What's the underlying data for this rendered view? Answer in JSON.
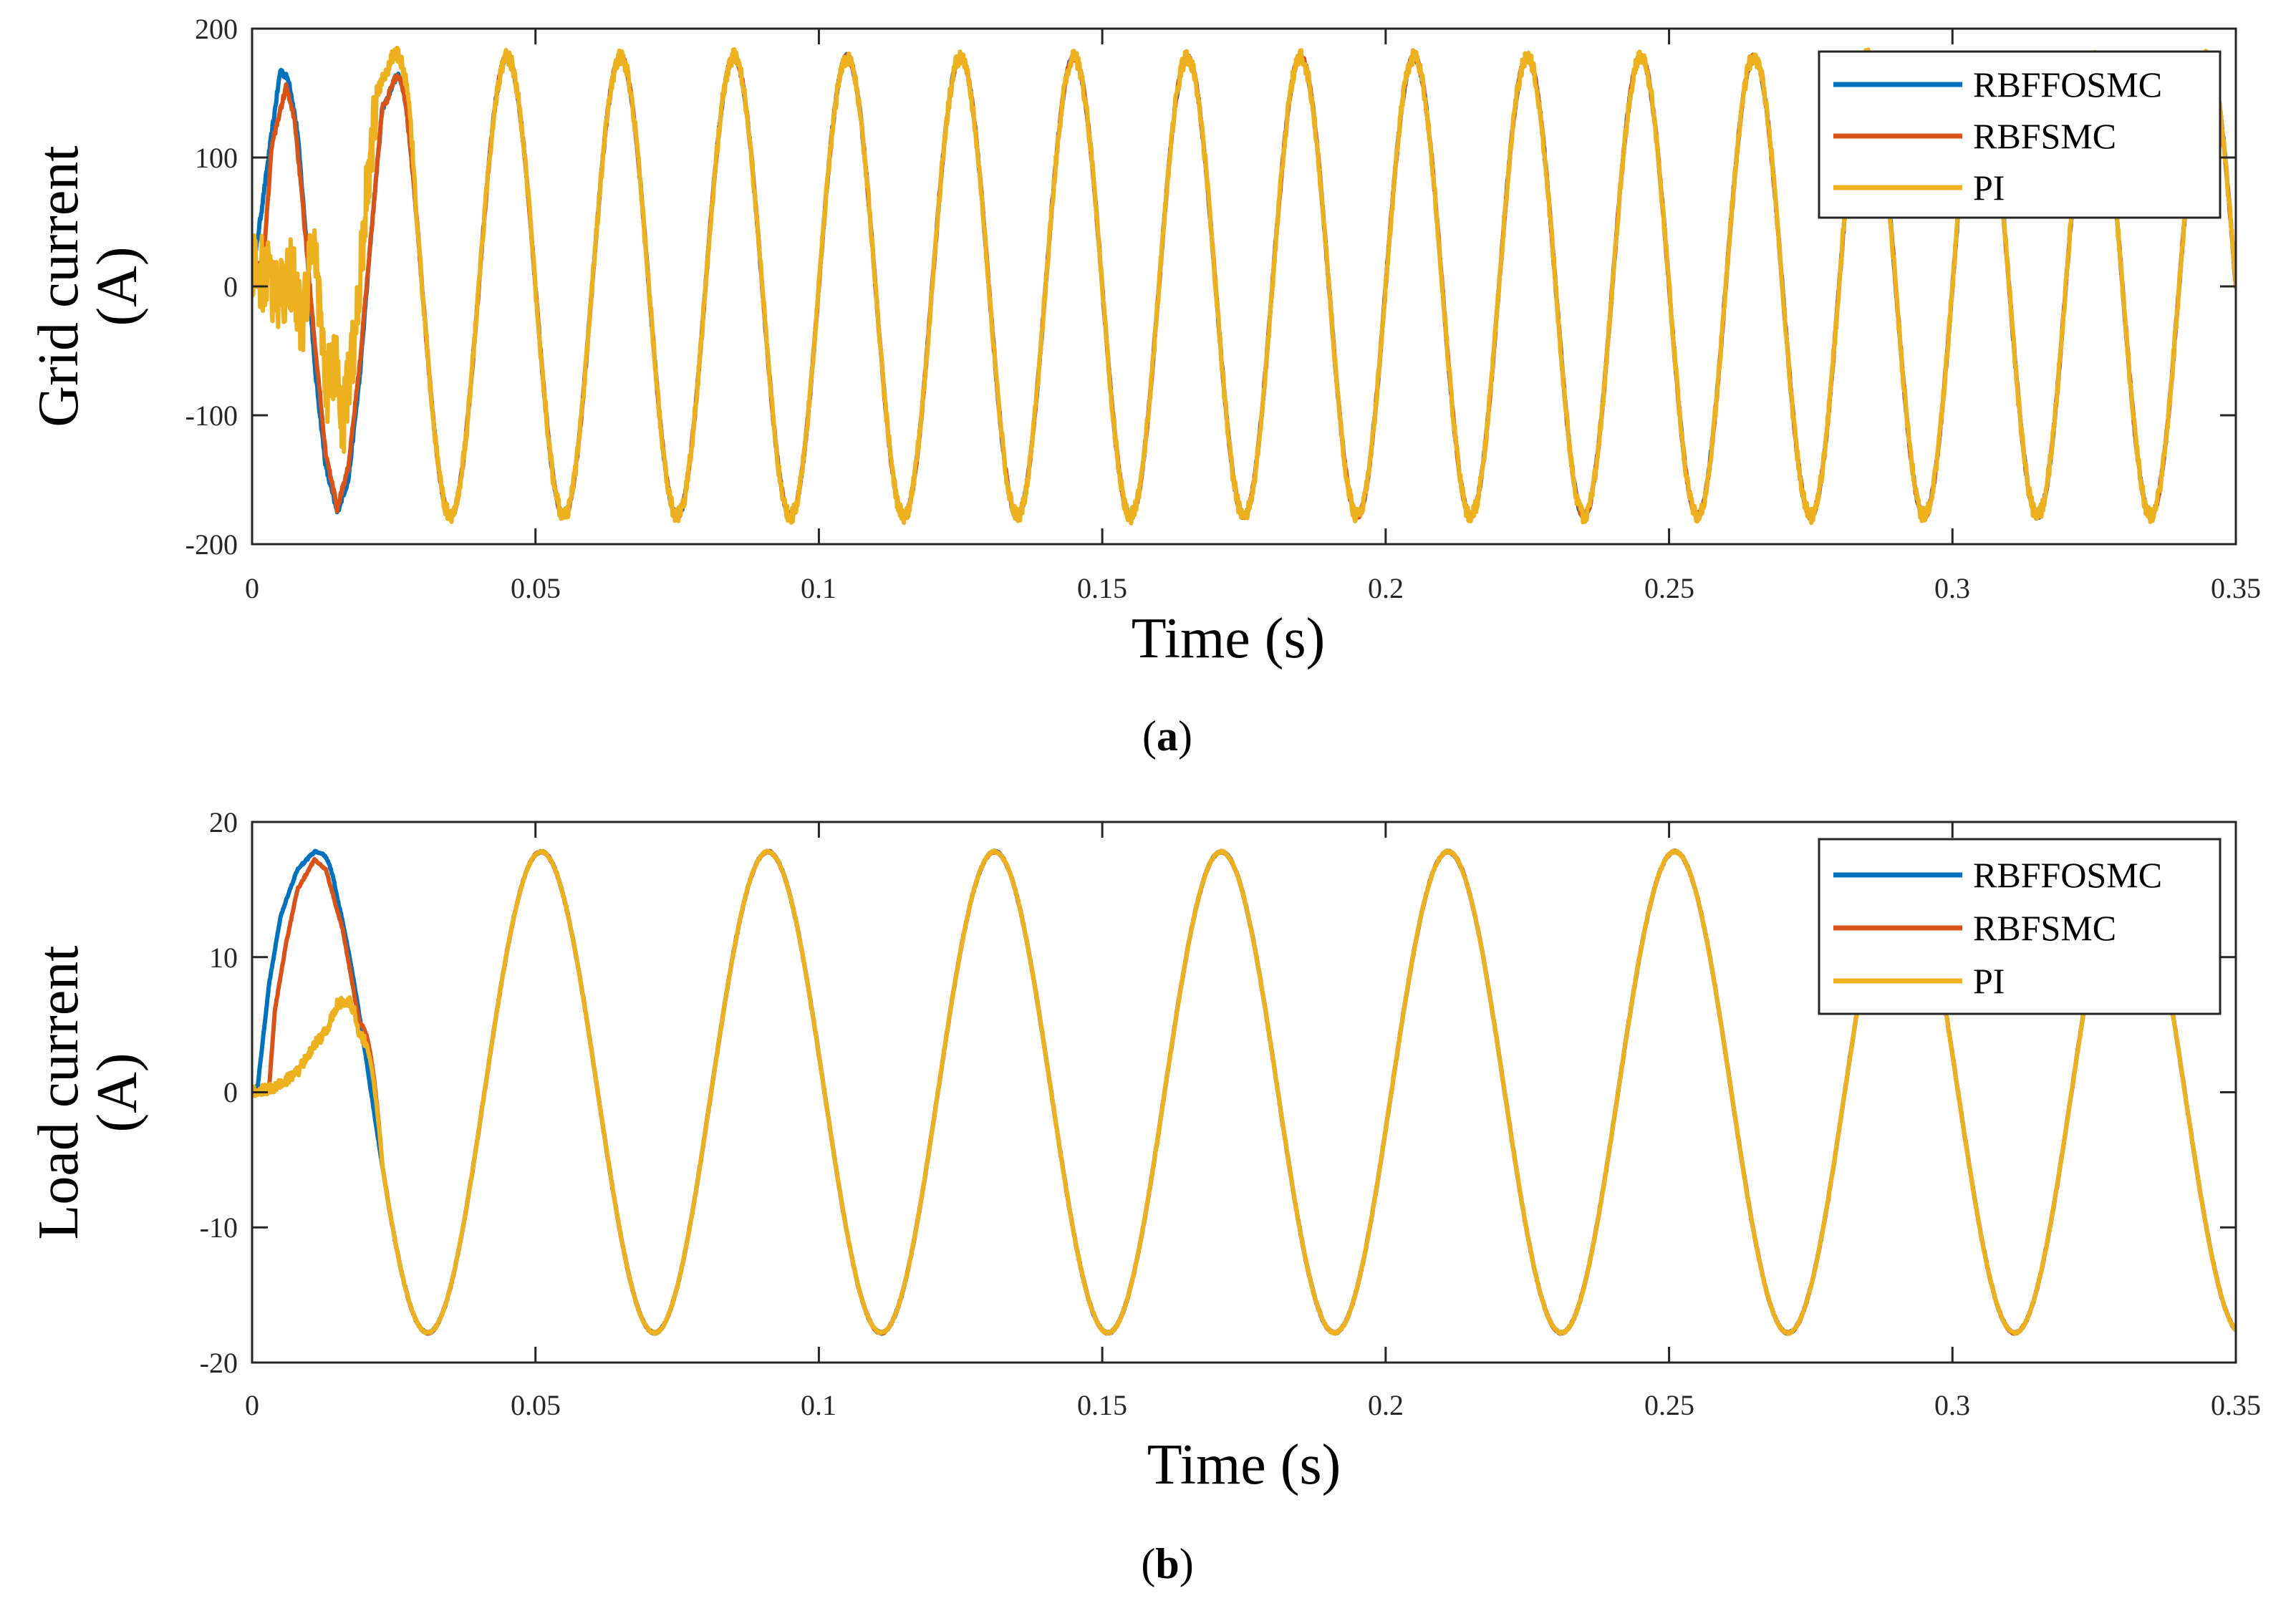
{
  "figure": {
    "captions": [
      "(a)",
      "(b)"
    ],
    "caption_parts": [
      {
        "open": "(",
        "letter": "a",
        "close": ")"
      },
      {
        "open": "(",
        "letter": "b",
        "close": ")"
      }
    ]
  },
  "chart_data": [
    {
      "id": "a",
      "type": "line",
      "title": "",
      "xlabel": "Time (s)",
      "ylabel_lines": [
        "Grid current",
        "(A)"
      ],
      "xlim": [
        0,
        0.35
      ],
      "ylim": [
        -200,
        200
      ],
      "x_ticks": [
        0,
        0.05,
        0.1,
        0.15,
        0.2,
        0.25,
        0.3,
        0.35
      ],
      "x_tick_labels": [
        "0",
        "0.05",
        "0.1",
        "0.15",
        "0.2",
        "0.25",
        "0.3",
        "0.35"
      ],
      "y_ticks": [
        -200,
        -100,
        0,
        100,
        200
      ],
      "y_tick_labels": [
        "-200",
        "-100",
        "0",
        "100",
        "200"
      ],
      "legend_position": "top-right",
      "waveform": {
        "frequency_hz": 50,
        "steady_amplitude": 178,
        "first_peak_time": 0.025
      },
      "series": [
        {
          "name": "RBFFOSMC",
          "color": "#0072BD",
          "transient": [
            [
              0,
              5
            ],
            [
              0.002,
              70
            ],
            [
              0.0035,
              120
            ],
            [
              0.005,
              168
            ],
            [
              0.0065,
              160
            ],
            [
              0.008,
              120
            ],
            [
              0.0095,
              40
            ],
            [
              0.011,
              -60
            ],
            [
              0.013,
              -140
            ],
            [
              0.015,
              -175
            ],
            [
              0.017,
              -150
            ],
            [
              0.019,
              -70
            ],
            [
              0.021,
              40
            ],
            [
              0.023,
              140
            ]
          ]
        },
        {
          "name": "RBFSMC",
          "color": "#D95319",
          "transient": [
            [
              0,
              10
            ],
            [
              0.002,
              20
            ],
            [
              0.0035,
              110
            ],
            [
              0.006,
              155
            ],
            [
              0.0075,
              130
            ],
            [
              0.009,
              60
            ],
            [
              0.011,
              -40
            ],
            [
              0.013,
              -130
            ],
            [
              0.015,
              -172
            ],
            [
              0.017,
              -140
            ],
            [
              0.019,
              -60
            ],
            [
              0.021,
              40
            ],
            [
              0.023,
              140
            ]
          ]
        },
        {
          "name": "PI",
          "color": "#EDB120",
          "transient": [
            [
              0,
              15
            ],
            [
              0.003,
              5
            ],
            [
              0.005,
              -10
            ],
            [
              0.007,
              10
            ],
            [
              0.009,
              -30
            ],
            [
              0.011,
              40
            ],
            [
              0.013,
              -80
            ],
            [
              0.015,
              -60
            ],
            [
              0.016,
              -110
            ],
            [
              0.018,
              -40
            ],
            [
              0.02,
              60
            ],
            [
              0.022,
              150
            ],
            [
              0.025,
              180
            ]
          ]
        }
      ]
    },
    {
      "id": "b",
      "type": "line",
      "title": "",
      "xlabel": "Time (s)",
      "ylabel_lines": [
        "Load current",
        "(A)"
      ],
      "xlim": [
        0,
        0.35
      ],
      "ylim": [
        -20,
        20
      ],
      "x_ticks": [
        0,
        0.05,
        0.1,
        0.15,
        0.2,
        0.25,
        0.3,
        0.35
      ],
      "x_tick_labels": [
        "0",
        "0.05",
        "0.1",
        "0.15",
        "0.2",
        "0.25",
        "0.3",
        "0.35"
      ],
      "y_ticks": [
        -20,
        -10,
        0,
        10,
        20
      ],
      "y_tick_labels": [
        "-20",
        "-10",
        "0",
        "10",
        "20"
      ],
      "legend_position": "top-right",
      "waveform": {
        "frequency_hz": 25,
        "steady_amplitude": 17.8,
        "first_peak_time": 0.011
      },
      "series": [
        {
          "name": "RBFFOSMC",
          "color": "#0072BD",
          "transient": [
            [
              0,
              0
            ],
            [
              0.001,
              0.5
            ],
            [
              0.003,
              8
            ],
            [
              0.005,
              13
            ],
            [
              0.008,
              16.5
            ],
            [
              0.011,
              17.8
            ]
          ]
        },
        {
          "name": "RBFSMC",
          "color": "#D95319",
          "transient": [
            [
              0,
              0
            ],
            [
              0.003,
              0.3
            ],
            [
              0.004,
              6
            ],
            [
              0.006,
              11
            ],
            [
              0.008,
              15
            ],
            [
              0.011,
              17.2
            ],
            [
              0.013,
              16.5
            ],
            [
              0.016,
              12
            ],
            [
              0.019,
              5
            ]
          ]
        },
        {
          "name": "PI",
          "color": "#EDB120",
          "transient": [
            [
              0,
              0
            ],
            [
              0.004,
              0.3
            ],
            [
              0.008,
              1.5
            ],
            [
              0.011,
              3.5
            ],
            [
              0.013,
              4.5
            ],
            [
              0.015,
              6.5
            ],
            [
              0.017,
              6.8
            ],
            [
              0.018,
              6
            ],
            [
              0.019,
              4
            ]
          ]
        }
      ]
    }
  ]
}
